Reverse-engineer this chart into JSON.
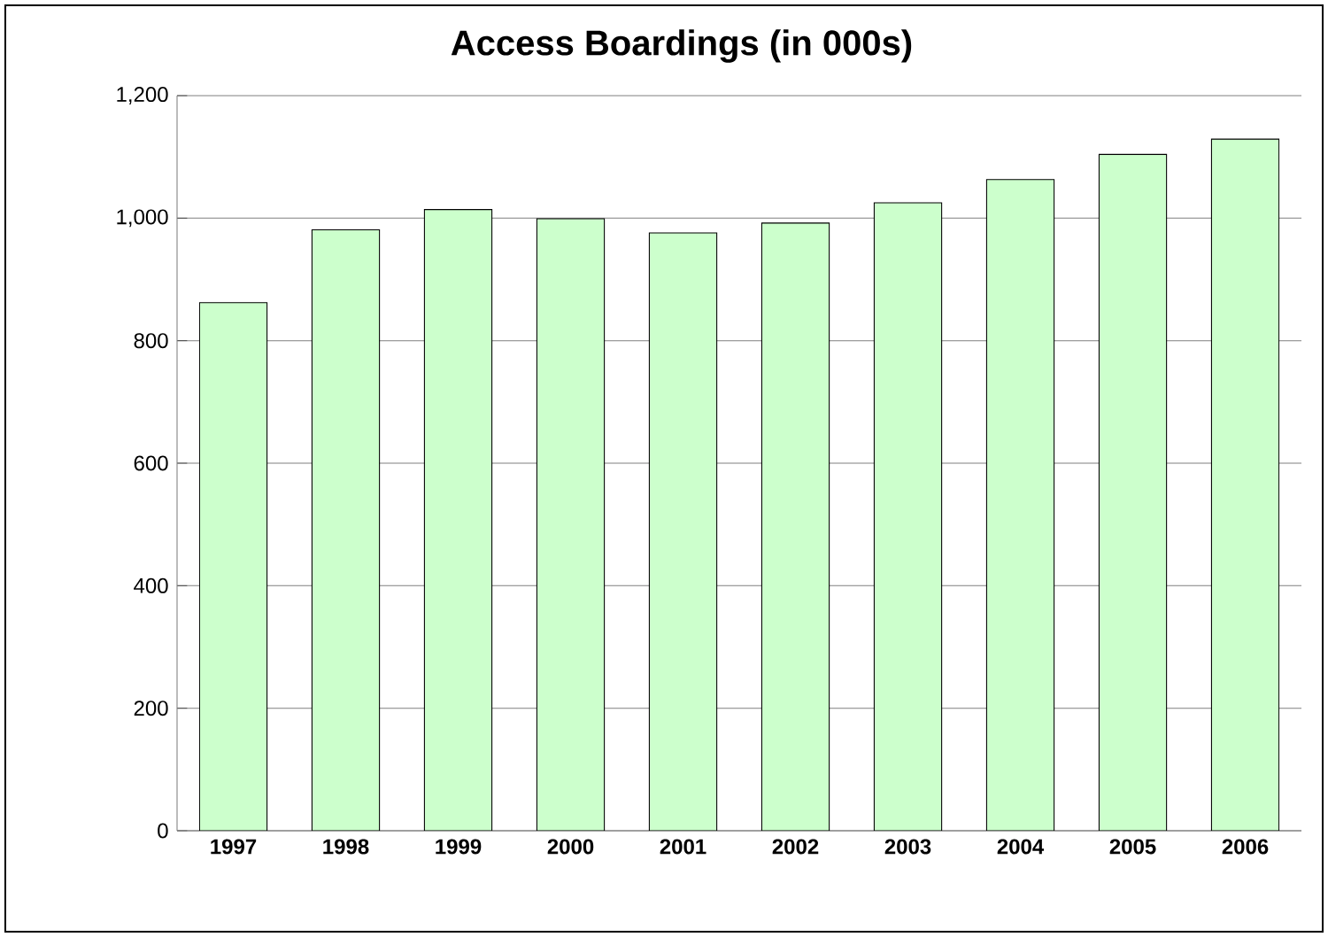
{
  "chart_data": {
    "type": "bar",
    "title": "Access Boardings (in 000s)",
    "categories": [
      "1997",
      "1998",
      "1999",
      "2000",
      "2001",
      "2002",
      "2003",
      "2004",
      "2005",
      "2006"
    ],
    "values": [
      862,
      981,
      1014,
      999,
      976,
      992,
      1025,
      1063,
      1104,
      1129
    ],
    "color": "#ccffcc",
    "ylim": [
      0,
      1200
    ],
    "yticks": [
      0,
      200,
      400,
      600,
      800,
      {
        "value": 1000,
        "label": "1,000"
      },
      {
        "value": 1200,
        "label": "1,200"
      }
    ],
    "grid": "y"
  }
}
